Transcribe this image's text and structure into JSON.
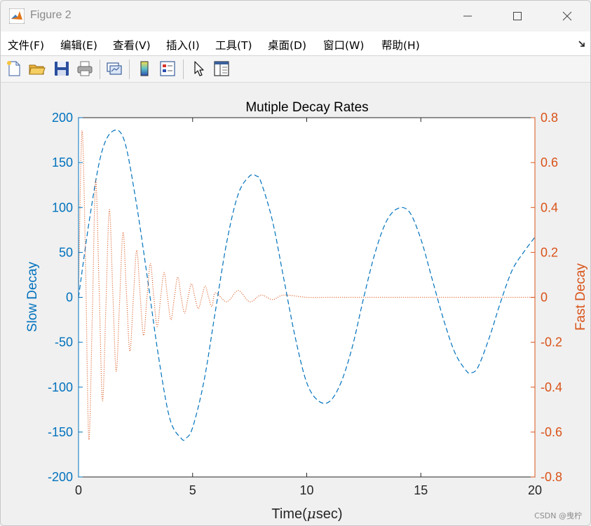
{
  "window": {
    "title": "Figure 2",
    "controls": {
      "minimize": "minimize",
      "maximize": "maximize",
      "close": "close"
    }
  },
  "menu": {
    "items": [
      {
        "label": "文件(F)"
      },
      {
        "label": "编辑(E)"
      },
      {
        "label": "查看(V)"
      },
      {
        "label": "插入(I)"
      },
      {
        "label": "工具(T)"
      },
      {
        "label": "桌面(D)"
      },
      {
        "label": "窗口(W)"
      },
      {
        "label": "帮助(H)"
      }
    ]
  },
  "toolbar": {
    "buttons": [
      {
        "icon": "new-figure-icon"
      },
      {
        "icon": "open-file-icon"
      },
      {
        "icon": "save-icon"
      },
      {
        "icon": "print-icon"
      },
      {
        "icon": "link-plot-icon"
      },
      {
        "icon": "colorbar-icon"
      },
      {
        "icon": "legend-icon"
      },
      {
        "icon": "edit-plot-cursor-icon"
      },
      {
        "icon": "property-inspector-icon"
      }
    ]
  },
  "watermark": "CSDN @曳柠",
  "chart_data": {
    "type": "line",
    "title": "Mutiple Decay Rates",
    "xlabel": "Time(μsec)",
    "xlabel_prefix": "Time(",
    "xlabel_mu": "μ",
    "xlabel_suffix": "sec)",
    "ylabel_left": "Slow Decay",
    "ylabel_right": "Fast Decay",
    "xlim": [
      0,
      20
    ],
    "ylim_left": [
      -200,
      200
    ],
    "ylim_right": [
      -0.8,
      0.8
    ],
    "x_ticks": [
      0,
      5,
      10,
      15,
      20
    ],
    "y_ticks_left": [
      200,
      150,
      100,
      50,
      0,
      -50,
      -100,
      -150,
      -200
    ],
    "y_ticks_right": [
      0.8,
      0.6,
      0.4,
      0.2,
      0,
      -0.2,
      -0.4,
      -0.6,
      -0.8
    ],
    "grid": false,
    "colors": {
      "left_axis": "#0072bd",
      "right_axis": "#d95319",
      "slow_series": "#0072bd",
      "fast_series": "#d95319"
    },
    "series": [
      {
        "axis": "left",
        "line_style": "dashed",
        "x": [
          0,
          0.5,
          1.0,
          1.5,
          2.0,
          2.5,
          3.0,
          3.5,
          4.0,
          4.5,
          4.7,
          5.0,
          5.5,
          6.0,
          6.5,
          7.0,
          7.5,
          7.8,
          8.0,
          8.5,
          9.0,
          9.5,
          10.0,
          10.5,
          11.0,
          11.5,
          12.0,
          12.5,
          13.0,
          13.5,
          14.0,
          14.5,
          15.0,
          15.5,
          16.0,
          16.5,
          17.0,
          17.2,
          17.5,
          18.0,
          18.5,
          19.0,
          19.5,
          20.0
        ],
        "y": [
          0,
          90,
          160,
          185,
          175,
          110,
          25,
          -65,
          -135,
          -157,
          -157,
          -145,
          -93,
          -15,
          62,
          115,
          135,
          135,
          128,
          85,
          20,
          -45,
          -95,
          -115,
          -116,
          -95,
          -55,
          0,
          50,
          85,
          99,
          95,
          65,
          20,
          -25,
          -62,
          -82,
          -84,
          -78,
          -45,
          -5,
          30,
          50,
          67
        ]
      },
      {
        "axis": "right",
        "line_style": "dotted",
        "x": [
          0,
          0.15,
          0.3,
          0.45,
          0.6,
          0.75,
          0.9,
          1.05,
          1.2,
          1.35,
          1.5,
          1.65,
          1.8,
          1.95,
          2.1,
          2.25,
          2.4,
          2.55,
          2.7,
          2.85,
          3.0,
          3.15,
          3.3,
          3.45,
          3.6,
          3.75,
          3.9,
          4.05,
          4.2,
          4.35,
          4.5,
          4.65,
          4.8,
          4.95,
          5.1,
          5.25,
          5.4,
          5.55,
          5.7,
          5.85,
          6.0,
          6.5,
          7.0,
          7.5,
          8.0,
          8.5,
          9.0,
          10.0,
          11.0,
          12.0,
          14.0,
          16.0,
          18.0,
          20.0
        ],
        "y": [
          0,
          0.74,
          0.2,
          -0.63,
          -0.1,
          0.52,
          0.05,
          -0.46,
          -0.04,
          0.39,
          0.03,
          -0.33,
          -0.02,
          0.29,
          0.02,
          -0.24,
          -0.01,
          0.21,
          0.01,
          -0.17,
          0,
          0.15,
          0,
          -0.13,
          0,
          0.11,
          0,
          -0.1,
          0,
          0.09,
          0,
          -0.07,
          0,
          0.06,
          0,
          -0.05,
          0,
          0.05,
          0,
          -0.04,
          0.02,
          -0.02,
          0.03,
          -0.02,
          0.01,
          -0.01,
          0.01,
          0,
          0,
          0,
          0,
          0,
          0,
          0
        ]
      }
    ]
  }
}
